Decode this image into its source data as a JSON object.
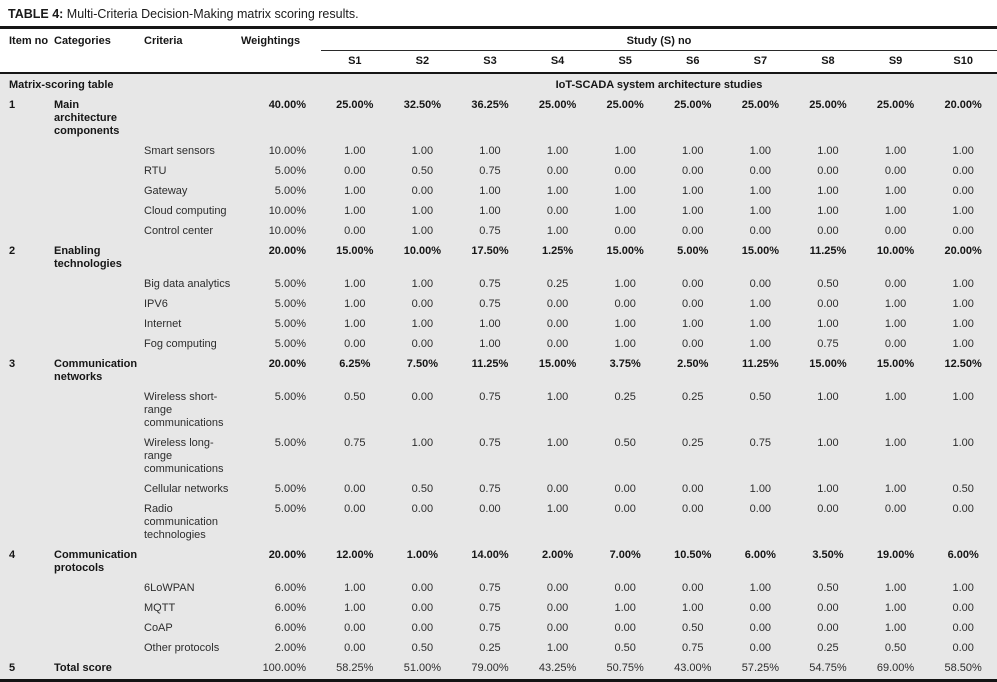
{
  "title": {
    "label": "TABLE 4:",
    "text": " Multi-Criteria Decision-Making matrix scoring results."
  },
  "table": {
    "columns": [
      "Item no",
      "Categories",
      "Criteria",
      "Weightings"
    ],
    "study_group_header": "Study (S) no",
    "study_columns": [
      "S1",
      "S2",
      "S3",
      "S4",
      "S5",
      "S6",
      "S7",
      "S8",
      "S9",
      "S10"
    ],
    "section_left": "Matrix-scoring table",
    "section_right": "IoT-SCADA system architecture studies",
    "rows": [
      {
        "item": "1",
        "category": "Main architecture components",
        "criteria": "",
        "weighting": "40.00%",
        "emphasis": "category",
        "values": [
          "25.00%",
          "32.50%",
          "36.25%",
          "25.00%",
          "25.00%",
          "25.00%",
          "25.00%",
          "25.00%",
          "25.00%",
          "20.00%"
        ]
      },
      {
        "item": "",
        "category": "",
        "criteria": "Smart sensors",
        "weighting": "10.00%",
        "emphasis": "none",
        "values": [
          "1.00",
          "1.00",
          "1.00",
          "1.00",
          "1.00",
          "1.00",
          "1.00",
          "1.00",
          "1.00",
          "1.00"
        ]
      },
      {
        "item": "",
        "category": "",
        "criteria": "RTU",
        "weighting": "5.00%",
        "emphasis": "none",
        "values": [
          "0.00",
          "0.50",
          "0.75",
          "0.00",
          "0.00",
          "0.00",
          "0.00",
          "0.00",
          "0.00",
          "0.00"
        ]
      },
      {
        "item": "",
        "category": "",
        "criteria": "Gateway",
        "weighting": "5.00%",
        "emphasis": "none",
        "values": [
          "1.00",
          "0.00",
          "1.00",
          "1.00",
          "1.00",
          "1.00",
          "1.00",
          "1.00",
          "1.00",
          "0.00"
        ]
      },
      {
        "item": "",
        "category": "",
        "criteria": "Cloud computing",
        "weighting": "10.00%",
        "emphasis": "none",
        "values": [
          "1.00",
          "1.00",
          "1.00",
          "0.00",
          "1.00",
          "1.00",
          "1.00",
          "1.00",
          "1.00",
          "1.00"
        ]
      },
      {
        "item": "",
        "category": "",
        "criteria": "Control center",
        "weighting": "10.00%",
        "emphasis": "none",
        "values": [
          "0.00",
          "1.00",
          "0.75",
          "1.00",
          "0.00",
          "0.00",
          "0.00",
          "0.00",
          "0.00",
          "0.00"
        ]
      },
      {
        "item": "2",
        "category": "Enabling technologies",
        "criteria": "",
        "weighting": "20.00%",
        "emphasis": "category",
        "values": [
          "15.00%",
          "10.00%",
          "17.50%",
          "1.25%",
          "15.00%",
          "5.00%",
          "15.00%",
          "11.25%",
          "10.00%",
          "20.00%"
        ]
      },
      {
        "item": "",
        "category": "",
        "criteria": "Big data analytics",
        "weighting": "5.00%",
        "emphasis": "none",
        "values": [
          "1.00",
          "1.00",
          "0.75",
          "0.25",
          "1.00",
          "0.00",
          "0.00",
          "0.50",
          "0.00",
          "1.00"
        ]
      },
      {
        "item": "",
        "category": "",
        "criteria": "IPV6",
        "weighting": "5.00%",
        "emphasis": "none",
        "values": [
          "1.00",
          "0.00",
          "0.75",
          "0.00",
          "0.00",
          "0.00",
          "1.00",
          "0.00",
          "1.00",
          "1.00"
        ]
      },
      {
        "item": "",
        "category": "",
        "criteria": "Internet",
        "weighting": "5.00%",
        "emphasis": "none",
        "values": [
          "1.00",
          "1.00",
          "1.00",
          "0.00",
          "1.00",
          "1.00",
          "1.00",
          "1.00",
          "1.00",
          "1.00"
        ]
      },
      {
        "item": "",
        "category": "",
        "criteria": "Fog computing",
        "weighting": "5.00%",
        "emphasis": "none",
        "values": [
          "0.00",
          "0.00",
          "1.00",
          "0.00",
          "1.00",
          "0.00",
          "1.00",
          "0.75",
          "0.00",
          "1.00"
        ]
      },
      {
        "item": "3",
        "category": "Communication networks",
        "criteria": "",
        "weighting": "20.00%",
        "emphasis": "category",
        "values": [
          "6.25%",
          "7.50%",
          "11.25%",
          "15.00%",
          "3.75%",
          "2.50%",
          "11.25%",
          "15.00%",
          "15.00%",
          "12.50%"
        ]
      },
      {
        "item": "",
        "category": "",
        "criteria": "Wireless short-range communications",
        "weighting": "5.00%",
        "emphasis": "none",
        "values": [
          "0.50",
          "0.00",
          "0.75",
          "1.00",
          "0.25",
          "0.25",
          "0.50",
          "1.00",
          "1.00",
          "1.00"
        ]
      },
      {
        "item": "",
        "category": "",
        "criteria": "Wireless long-range communications",
        "weighting": "5.00%",
        "emphasis": "none",
        "values": [
          "0.75",
          "1.00",
          "0.75",
          "1.00",
          "0.50",
          "0.25",
          "0.75",
          "1.00",
          "1.00",
          "1.00"
        ]
      },
      {
        "item": "",
        "category": "",
        "criteria": "Cellular networks",
        "weighting": "5.00%",
        "emphasis": "none",
        "values": [
          "0.00",
          "0.50",
          "0.75",
          "0.00",
          "0.00",
          "0.00",
          "1.00",
          "1.00",
          "1.00",
          "0.50"
        ]
      },
      {
        "item": "",
        "category": "",
        "criteria": "Radio communication technologies",
        "weighting": "5.00%",
        "emphasis": "none",
        "values": [
          "0.00",
          "0.00",
          "0.00",
          "1.00",
          "0.00",
          "0.00",
          "0.00",
          "0.00",
          "0.00",
          "0.00"
        ]
      },
      {
        "item": "4",
        "category": "Communication protocols",
        "criteria": "",
        "weighting": "20.00%",
        "emphasis": "category",
        "values": [
          "12.00%",
          "1.00%",
          "14.00%",
          "2.00%",
          "7.00%",
          "10.50%",
          "6.00%",
          "3.50%",
          "19.00%",
          "6.00%"
        ]
      },
      {
        "item": "",
        "category": "",
        "criteria": "6LoWPAN",
        "weighting": "6.00%",
        "emphasis": "none",
        "values": [
          "1.00",
          "0.00",
          "0.75",
          "0.00",
          "0.00",
          "0.00",
          "1.00",
          "0.50",
          "1.00",
          "1.00"
        ]
      },
      {
        "item": "",
        "category": "",
        "criteria": "MQTT",
        "weighting": "6.00%",
        "emphasis": "none",
        "values": [
          "1.00",
          "0.00",
          "0.75",
          "0.00",
          "1.00",
          "1.00",
          "0.00",
          "0.00",
          "1.00",
          "0.00"
        ]
      },
      {
        "item": "",
        "category": "",
        "criteria": "CoAP",
        "weighting": "6.00%",
        "emphasis": "none",
        "values": [
          "0.00",
          "0.00",
          "0.75",
          "0.00",
          "0.00",
          "0.50",
          "0.00",
          "0.00",
          "1.00",
          "0.00"
        ]
      },
      {
        "item": "",
        "category": "",
        "criteria": "Other protocols",
        "weighting": "2.00%",
        "emphasis": "none",
        "values": [
          "0.00",
          "0.50",
          "0.25",
          "1.00",
          "0.50",
          "0.75",
          "0.00",
          "0.25",
          "0.50",
          "0.00"
        ]
      },
      {
        "item": "5",
        "category": "Total score",
        "criteria": "",
        "weighting": "100.00%",
        "emphasis": "total",
        "values": [
          "58.25%",
          "51.00%",
          "79.00%",
          "43.25%",
          "50.75%",
          "43.00%",
          "57.25%",
          "54.75%",
          "69.00%",
          "58.50%"
        ]
      }
    ]
  },
  "colors": {
    "body_background": "#e7e7e7",
    "rule": "#161616",
    "text": "#1c1c1c"
  }
}
